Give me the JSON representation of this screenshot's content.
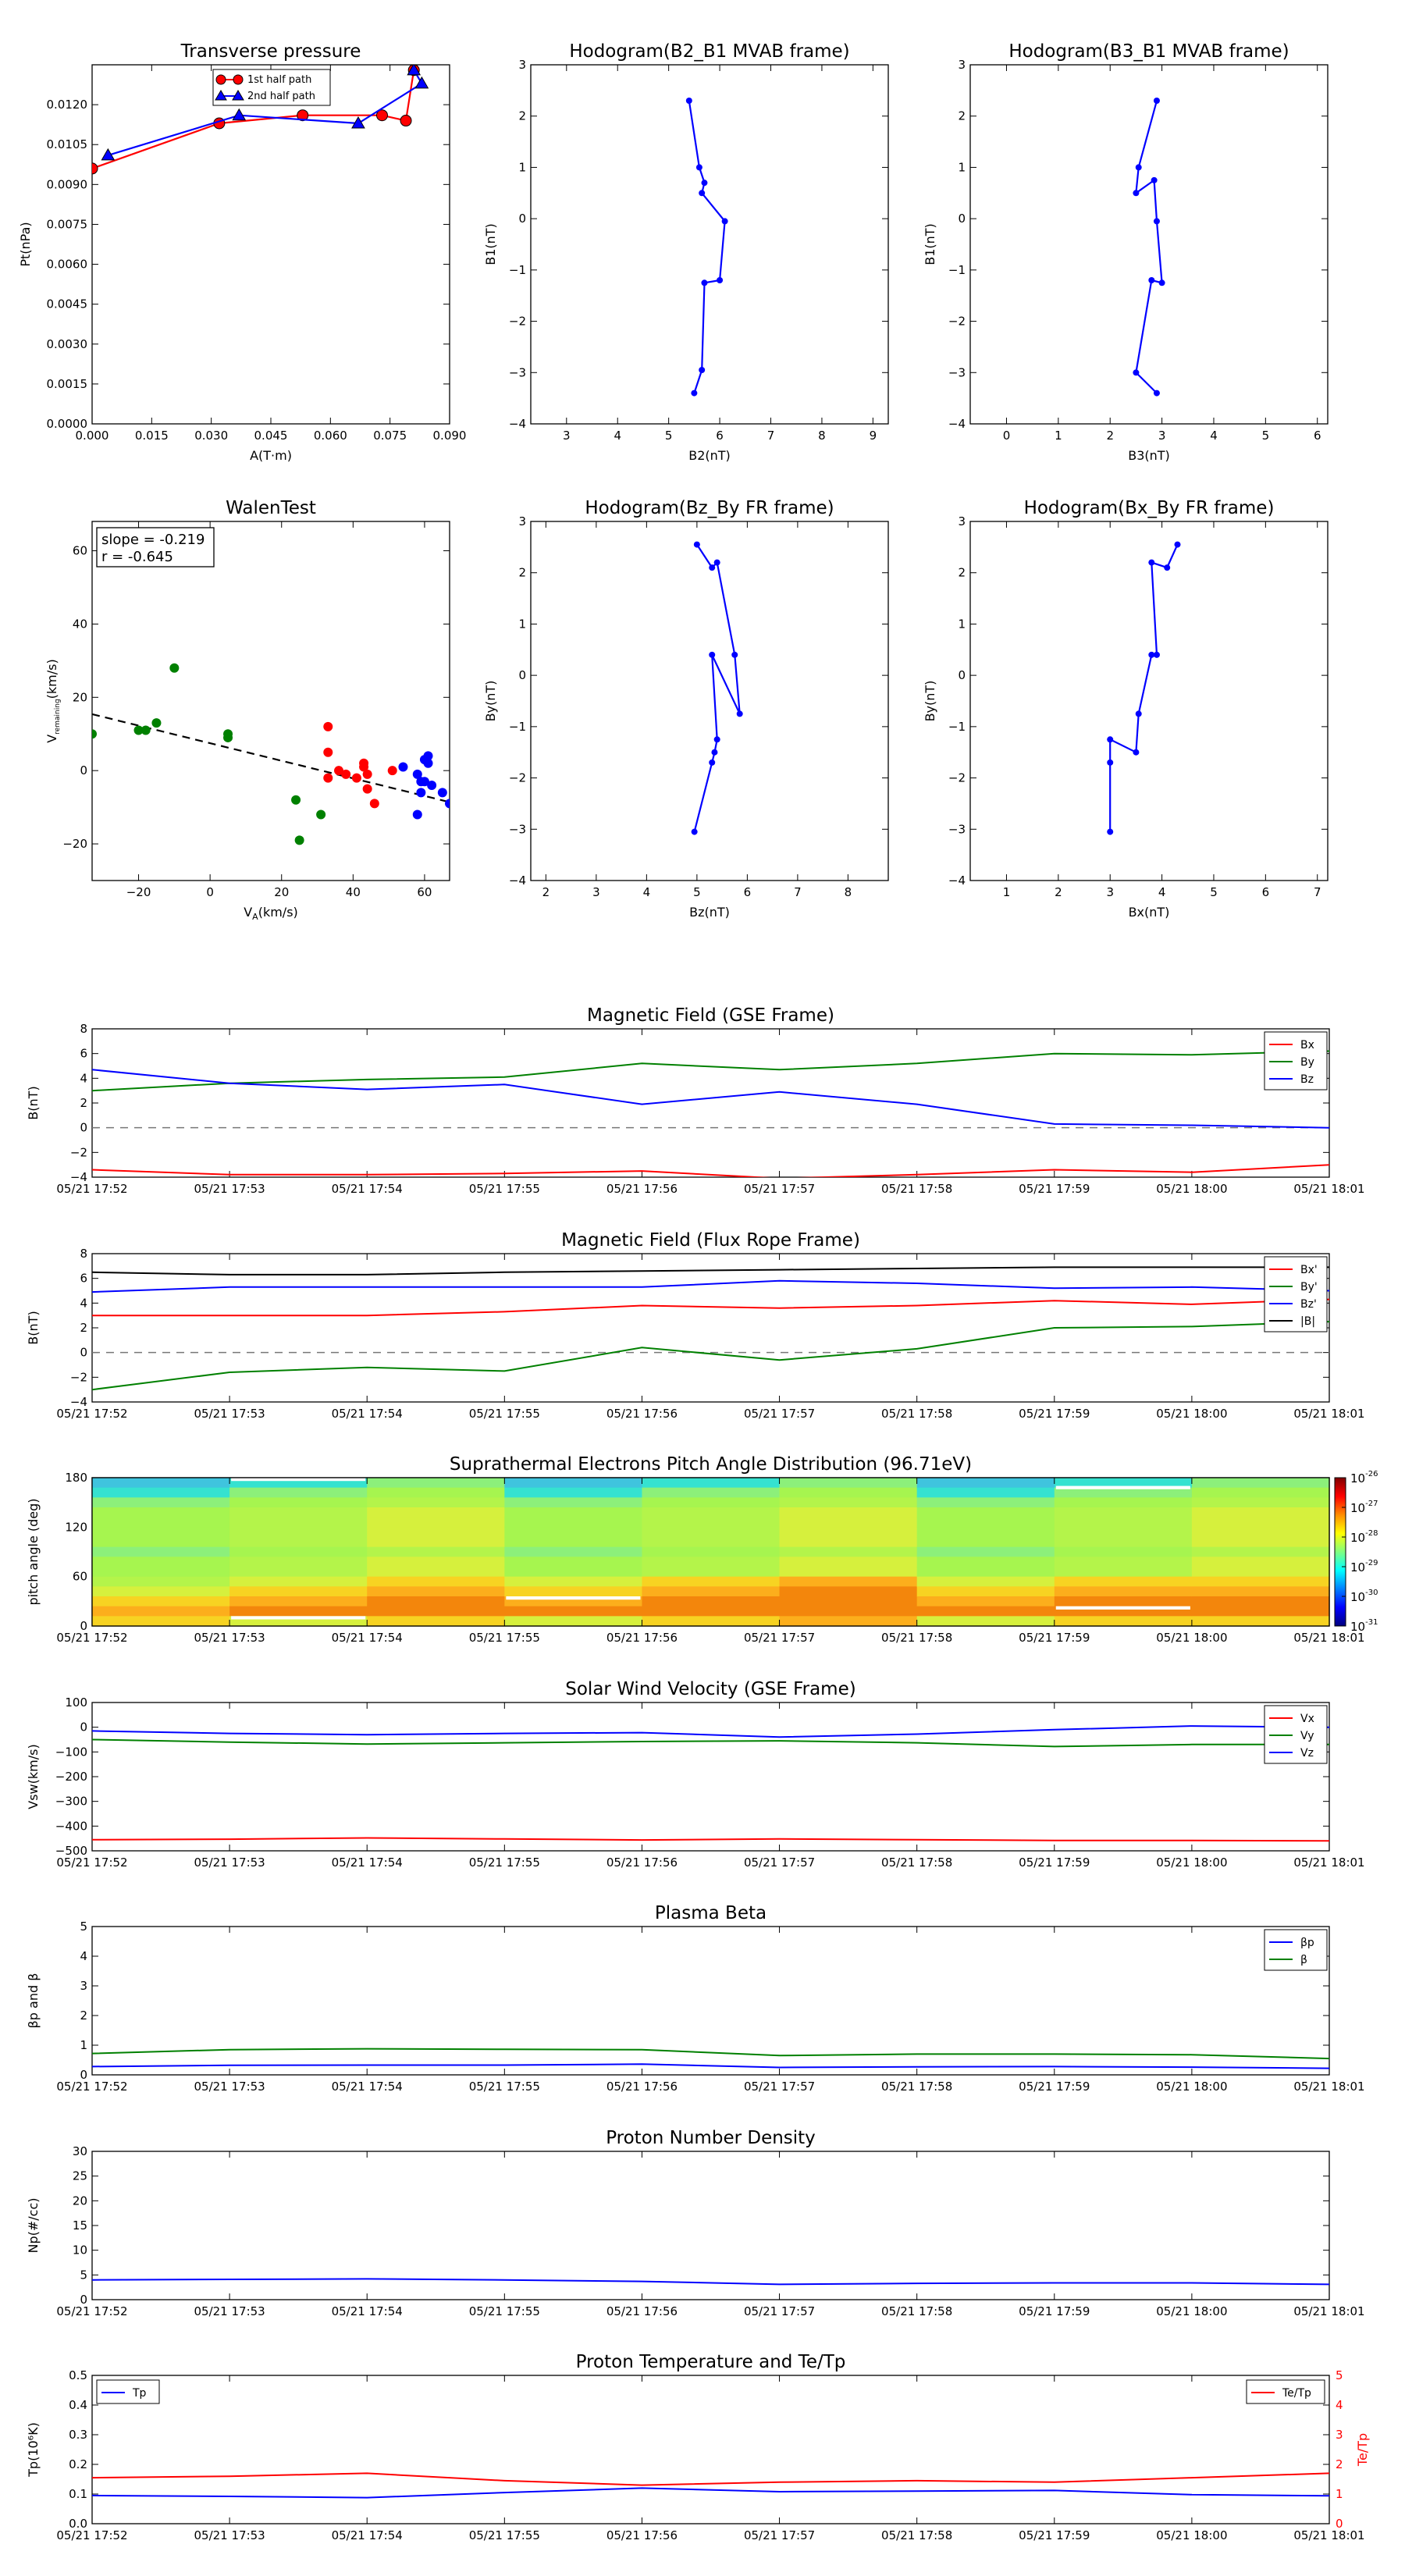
{
  "time_ticks": [
    "05/21 17:52",
    "05/21 17:53",
    "05/21 17:54",
    "05/21 17:55",
    "05/21 17:56",
    "05/21 17:57",
    "05/21 17:58",
    "05/21 17:59",
    "05/21 18:00",
    "05/21 18:01"
  ],
  "colors": {
    "red": "#ff0000",
    "green": "#008000",
    "blue": "#0000ff",
    "black": "#000000"
  },
  "chart_data": [
    {
      "id": "pt",
      "type": "line",
      "title": "Transverse pressure",
      "xlabel": "A(T·m)",
      "ylabel": "Pt(nPa)",
      "xlim": [
        0,
        0.09
      ],
      "ylim": [
        0,
        0.0135
      ],
      "xticks": [
        0.0,
        0.015,
        0.03,
        0.045,
        0.06,
        0.075,
        0.09
      ],
      "xtick_labels": [
        "0.000",
        "0.015",
        "0.030",
        "0.045",
        "0.060",
        "0.075",
        "0.090"
      ],
      "yticks": [
        0,
        0.0015,
        0.003,
        0.0045,
        0.006,
        0.0075,
        0.009,
        0.0105,
        0.012
      ],
      "ytick_labels": [
        "0.0000",
        "0.0015",
        "0.0030",
        "0.0045",
        "0.0060",
        "0.0075",
        "0.0090",
        "0.0105",
        "0.0120"
      ],
      "legend": "top-center",
      "series": [
        {
          "name": "1st half path",
          "marker": "circle",
          "color": "#ff0000",
          "x": [
            0.0,
            0.032,
            0.053,
            0.073,
            0.079,
            0.081
          ],
          "y": [
            0.0096,
            0.0113,
            0.0116,
            0.0116,
            0.0114,
            0.0133
          ]
        },
        {
          "name": "2nd half path",
          "marker": "triangle",
          "color": "#0000ff",
          "x": [
            0.004,
            0.037,
            0.067,
            0.083,
            0.081
          ],
          "y": [
            0.0101,
            0.0116,
            0.0113,
            0.0128,
            0.0133
          ]
        }
      ]
    },
    {
      "id": "h1",
      "type": "line",
      "title": "Hodogram(B2_B1 MVAB frame)",
      "xlabel": "B2(nT)",
      "ylabel": "B1(nT)",
      "xlim": [
        2.3,
        9.3
      ],
      "ylim": [
        -4,
        3
      ],
      "xticks": [
        3,
        4,
        5,
        6,
        7,
        8,
        9
      ],
      "yticks": [
        -4,
        -3,
        -2,
        -1,
        0,
        1,
        2,
        3
      ],
      "series": [
        {
          "color": "#0000ff",
          "x": [
            5.4,
            5.6,
            5.7,
            5.65,
            6.1,
            6.0,
            5.7,
            5.65,
            5.5
          ],
          "y": [
            2.3,
            1.0,
            0.7,
            0.5,
            -0.05,
            -1.2,
            -1.25,
            -2.95,
            -3.4
          ]
        }
      ]
    },
    {
      "id": "h2",
      "type": "line",
      "title": "Hodogram(B3_B1 MVAB frame)",
      "xlabel": "B3(nT)",
      "ylabel": "B1(nT)",
      "xlim": [
        -0.7,
        6.2
      ],
      "ylim": [
        -4,
        3
      ],
      "xticks": [
        0,
        1,
        2,
        3,
        4,
        5,
        6
      ],
      "yticks": [
        -4,
        -3,
        -2,
        -1,
        0,
        1,
        2,
        3
      ],
      "series": [
        {
          "color": "#0000ff",
          "x": [
            2.9,
            2.55,
            2.5,
            2.85,
            2.9,
            3.0,
            2.8,
            2.5,
            2.9
          ],
          "y": [
            2.3,
            1.0,
            0.5,
            0.75,
            -0.05,
            -1.25,
            -1.2,
            -3.0,
            -3.4
          ]
        }
      ]
    },
    {
      "id": "walen",
      "type": "scatter",
      "title": "WalenTest",
      "xlabel": "V_A(km/s)",
      "ylabel": "V_remaining(km/s)",
      "xlim": [
        -33,
        67
      ],
      "ylim": [
        -30,
        68
      ],
      "xticks": [
        -20,
        0,
        20,
        40,
        60
      ],
      "yticks": [
        -20,
        0,
        20,
        40,
        60
      ],
      "annotation": [
        "slope = -0.219",
        "r = -0.645"
      ],
      "fit": {
        "x": [
          -33,
          67
        ],
        "y": [
          15.4,
          -8.6
        ]
      },
      "series": [
        {
          "color": "#008000",
          "x": [
            -33,
            -20,
            -18,
            -15,
            -10,
            5,
            5,
            24,
            25,
            31
          ],
          "y": [
            10,
            11,
            11,
            13,
            28,
            10,
            9,
            -8,
            -19,
            -12
          ]
        },
        {
          "color": "#ff0000",
          "x": [
            33,
            33,
            33,
            36,
            38,
            41,
            43,
            43,
            44,
            44,
            46,
            51
          ],
          "y": [
            12,
            5,
            -2,
            0,
            -1,
            -2,
            2,
            1,
            -1,
            -5,
            -9,
            0
          ]
        },
        {
          "color": "#0000ff",
          "x": [
            54,
            58,
            59,
            59,
            58,
            60,
            60,
            61,
            61,
            62,
            65,
            67
          ],
          "y": [
            1,
            -1,
            -3,
            -6,
            -12,
            -3,
            3,
            2,
            4,
            -4,
            -6,
            -9
          ]
        }
      ]
    },
    {
      "id": "h3",
      "type": "line",
      "title": "Hodogram(Bz_By FR frame)",
      "xlabel": "Bz(nT)",
      "ylabel": "By(nT)",
      "xlim": [
        1.7,
        8.8
      ],
      "ylim": [
        -4,
        3
      ],
      "xticks": [
        2,
        3,
        4,
        5,
        6,
        7,
        8
      ],
      "yticks": [
        -4,
        -3,
        -2,
        -1,
        0,
        1,
        2,
        3
      ],
      "series": [
        {
          "color": "#0000ff",
          "x": [
            5.0,
            5.3,
            5.4,
            5.75,
            5.85,
            5.3,
            5.4,
            5.35,
            5.3,
            4.95
          ],
          "y": [
            2.55,
            2.1,
            2.2,
            0.4,
            -0.75,
            0.4,
            -1.25,
            -1.5,
            -1.7,
            -3.05
          ]
        }
      ]
    },
    {
      "id": "h4",
      "type": "line",
      "title": "Hodogram(Bx_By FR frame)",
      "xlabel": "Bx(nT)",
      "ylabel": "By(nT)",
      "xlim": [
        0.3,
        7.2
      ],
      "ylim": [
        -4,
        3
      ],
      "xticks": [
        1,
        2,
        3,
        4,
        5,
        6,
        7
      ],
      "yticks": [
        -4,
        -3,
        -2,
        -1,
        0,
        1,
        2,
        3
      ],
      "series": [
        {
          "color": "#0000ff",
          "x": [
            4.3,
            4.1,
            3.8,
            3.9,
            3.8,
            3.55,
            3.5,
            3.0,
            3.0,
            3.0
          ],
          "y": [
            2.55,
            2.1,
            2.2,
            0.4,
            0.4,
            -0.75,
            -1.5,
            -1.25,
            -1.7,
            -3.05
          ]
        }
      ]
    },
    {
      "id": "bgse",
      "type": "line",
      "title": "Magnetic Field (GSE Frame)",
      "ylabel": "B(nT)",
      "ylim": [
        -4,
        8
      ],
      "yticks": [
        -4,
        -2,
        0,
        2,
        4,
        6,
        8
      ],
      "zero_line": true,
      "legend": "top-right",
      "series": [
        {
          "name": "Bx",
          "color": "#ff0000",
          "values": [
            -3.4,
            -3.8,
            -3.8,
            -3.7,
            -3.5,
            -4.1,
            -3.8,
            -3.4,
            -3.6,
            -3.0
          ]
        },
        {
          "name": "By",
          "color": "#008000",
          "values": [
            3.0,
            3.6,
            3.9,
            4.1,
            5.2,
            4.7,
            5.2,
            6.0,
            5.9,
            6.2
          ]
        },
        {
          "name": "Bz",
          "color": "#0000ff",
          "values": [
            4.7,
            3.6,
            3.1,
            3.5,
            1.9,
            2.9,
            1.9,
            0.3,
            0.2,
            0.0
          ]
        }
      ]
    },
    {
      "id": "bfr",
      "type": "line",
      "title": "Magnetic Field (Flux Rope Frame)",
      "ylabel": "B(nT)",
      "ylim": [
        -4,
        8
      ],
      "yticks": [
        -4,
        -2,
        0,
        2,
        4,
        6,
        8
      ],
      "zero_line": true,
      "legend": "top-right",
      "series": [
        {
          "name": "Bx'",
          "color": "#ff0000",
          "values": [
            3.0,
            3.0,
            3.0,
            3.3,
            3.8,
            3.6,
            3.8,
            4.2,
            3.9,
            4.3
          ]
        },
        {
          "name": "By'",
          "color": "#008000",
          "values": [
            -3.0,
            -1.6,
            -1.2,
            -1.5,
            0.4,
            -0.6,
            0.3,
            2.0,
            2.1,
            2.5
          ]
        },
        {
          "name": "Bz'",
          "color": "#0000ff",
          "values": [
            4.9,
            5.3,
            5.3,
            5.3,
            5.3,
            5.8,
            5.6,
            5.2,
            5.3,
            5.0
          ]
        },
        {
          "name": "|B|",
          "color": "#000000",
          "values": [
            6.5,
            6.3,
            6.3,
            6.5,
            6.6,
            6.7,
            6.8,
            6.9,
            6.9,
            6.9
          ]
        }
      ]
    },
    {
      "id": "pad",
      "type": "heatmap",
      "title": "Suprathermal Electrons Pitch Angle Distribution (96.71eV)",
      "ylabel": "pitch angle (deg)",
      "ylim": [
        0,
        180
      ],
      "yticks": [
        0,
        60,
        120,
        180
      ],
      "colorbar": {
        "ticks": [
          "10",
          "10",
          "10",
          "10",
          "10",
          "10"
        ],
        "exps": [
          "-26",
          "-27",
          "-28",
          "-29",
          "-30",
          "-31"
        ]
      }
    },
    {
      "id": "vsw",
      "type": "line",
      "title": "Solar Wind Velocity (GSE Frame)",
      "ylabel": "Vsw(km/s)",
      "ylim": [
        -500,
        100
      ],
      "yticks": [
        -500,
        -400,
        -300,
        -200,
        -100,
        0,
        100
      ],
      "ytick_labels": [
        "−500",
        "−400",
        "−300",
        "−200",
        "−100",
        "0",
        "100"
      ],
      "legend": "top-right",
      "series": [
        {
          "name": "Vx",
          "color": "#ff0000",
          "values": [
            -455,
            -453,
            -448,
            -452,
            -456,
            -452,
            -455,
            -458,
            -458,
            -460
          ]
        },
        {
          "name": "Vy",
          "color": "#008000",
          "values": [
            -50,
            -60,
            -68,
            -63,
            -58,
            -55,
            -63,
            -78,
            -70,
            -70
          ]
        },
        {
          "name": "Vz",
          "color": "#0000ff",
          "values": [
            -15,
            -25,
            -30,
            -25,
            -22,
            -40,
            -28,
            -10,
            5,
            0
          ]
        }
      ]
    },
    {
      "id": "beta",
      "type": "line",
      "title": "Plasma Beta",
      "ylabel": "βp and β",
      "ylim": [
        0,
        5
      ],
      "yticks": [
        0,
        1,
        2,
        3,
        4,
        5
      ],
      "legend": "top-right",
      "series": [
        {
          "name": "βp",
          "color": "#0000ff",
          "values": [
            0.28,
            0.32,
            0.33,
            0.33,
            0.36,
            0.25,
            0.27,
            0.28,
            0.26,
            0.22
          ]
        },
        {
          "name": "β",
          "color": "#008000",
          "values": [
            0.72,
            0.85,
            0.88,
            0.86,
            0.85,
            0.65,
            0.7,
            0.7,
            0.68,
            0.55
          ]
        }
      ]
    },
    {
      "id": "np",
      "type": "line",
      "title": "Proton Number Density",
      "ylabel": "Np(#/cc)",
      "ylim": [
        0,
        30
      ],
      "yticks": [
        0,
        5,
        10,
        15,
        20,
        25,
        30
      ],
      "series": [
        {
          "color": "#0000ff",
          "values": [
            4.0,
            4.1,
            4.2,
            4.0,
            3.7,
            3.1,
            3.3,
            3.4,
            3.4,
            3.1
          ]
        }
      ]
    },
    {
      "id": "tp",
      "type": "line",
      "title": "Proton Temperature and Te/Tp",
      "ylabel": "Tp(10⁶K)",
      "ylim": [
        0,
        0.5
      ],
      "yticks": [
        0,
        0.1,
        0.2,
        0.3,
        0.4,
        0.5
      ],
      "ytick_labels": [
        "0.0",
        "0.1",
        "0.2",
        "0.3",
        "0.4",
        "0.5"
      ],
      "y2label": "Te/Tp",
      "y2lim": [
        0,
        5
      ],
      "y2ticks": [
        0,
        1,
        2,
        3,
        4,
        5
      ],
      "legend": "top-left",
      "legend2": "top-right",
      "series": [
        {
          "name": "Tp",
          "color": "#0000ff",
          "axis": "left",
          "values": [
            0.095,
            0.092,
            0.088,
            0.105,
            0.12,
            0.108,
            0.11,
            0.112,
            0.098,
            0.094
          ]
        },
        {
          "name": "Te/Tp",
          "color": "#ff0000",
          "axis": "right",
          "values": [
            1.55,
            1.6,
            1.7,
            1.45,
            1.3,
            1.4,
            1.45,
            1.4,
            1.55,
            1.7
          ]
        }
      ]
    }
  ]
}
